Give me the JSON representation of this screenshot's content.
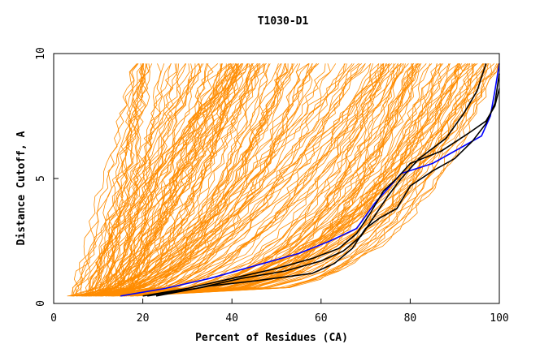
{
  "chart_data": {
    "type": "line",
    "title": "T1030-D1",
    "xlabel": "Percent of Residues (CA)",
    "ylabel": "Distance Cutoff, A",
    "xlim": [
      0,
      100
    ],
    "ylim": [
      0,
      10
    ],
    "x_ticks": [
      "0",
      "20",
      "40",
      "60",
      "80",
      "100"
    ],
    "y_ticks": [
      "0",
      "5",
      "10"
    ],
    "grid": false,
    "legend": "none",
    "colors": {
      "models": "#ff8c00",
      "best_black": "#000000",
      "highlight_blue": "#0000ff"
    },
    "series": [
      {
        "values": [
          [
            15,
            0.3
          ],
          [
            25,
            0.6
          ],
          [
            35,
            1.0
          ],
          [
            45,
            1.5
          ],
          [
            55,
            2.0
          ],
          [
            62,
            2.5
          ],
          [
            68,
            3.0
          ],
          [
            72,
            4.0
          ],
          [
            75,
            4.6
          ],
          [
            78,
            5.2
          ],
          [
            85,
            5.6
          ],
          [
            92,
            6.3
          ],
          [
            96,
            6.7
          ],
          [
            98,
            7.5
          ],
          [
            99,
            8.5
          ],
          [
            100,
            9.6
          ]
        ],
        "color": "#0000ff"
      },
      {
        "values": [
          [
            20,
            0.3
          ],
          [
            30,
            0.6
          ],
          [
            40,
            1.0
          ],
          [
            50,
            1.4
          ],
          [
            58,
            1.8
          ],
          [
            64,
            2.2
          ],
          [
            68,
            2.8
          ],
          [
            71,
            3.6
          ],
          [
            74,
            4.5
          ],
          [
            77,
            5.0
          ],
          [
            80,
            5.6
          ],
          [
            87,
            6.1
          ],
          [
            93,
            6.8
          ],
          [
            97,
            7.3
          ],
          [
            99,
            7.9
          ],
          [
            100,
            8.6
          ]
        ],
        "color": "#000000"
      },
      {
        "values": [
          [
            21,
            0.3
          ],
          [
            32,
            0.6
          ],
          [
            42,
            1.0
          ],
          [
            52,
            1.3
          ],
          [
            60,
            1.7
          ],
          [
            65,
            2.1
          ],
          [
            69,
            2.7
          ],
          [
            72,
            3.5
          ],
          [
            75,
            4.3
          ],
          [
            78,
            5.0
          ],
          [
            82,
            5.8
          ],
          [
            88,
            6.6
          ],
          [
            92,
            7.6
          ],
          [
            95,
            8.5
          ],
          [
            97,
            9.6
          ]
        ],
        "color": "#000000"
      },
      {
        "values": [
          [
            23,
            0.3
          ],
          [
            35,
            0.7
          ],
          [
            45,
            0.9
          ],
          [
            58,
            1.2
          ],
          [
            63,
            1.6
          ],
          [
            67,
            2.2
          ],
          [
            70,
            3.0
          ],
          [
            73,
            3.4
          ],
          [
            77,
            3.8
          ],
          [
            80,
            4.7
          ],
          [
            85,
            5.3
          ],
          [
            90,
            5.8
          ],
          [
            94,
            6.5
          ],
          [
            97,
            7.2
          ],
          [
            99,
            8.0
          ],
          [
            100,
            9.2
          ]
        ],
        "color": "#000000"
      }
    ]
  }
}
